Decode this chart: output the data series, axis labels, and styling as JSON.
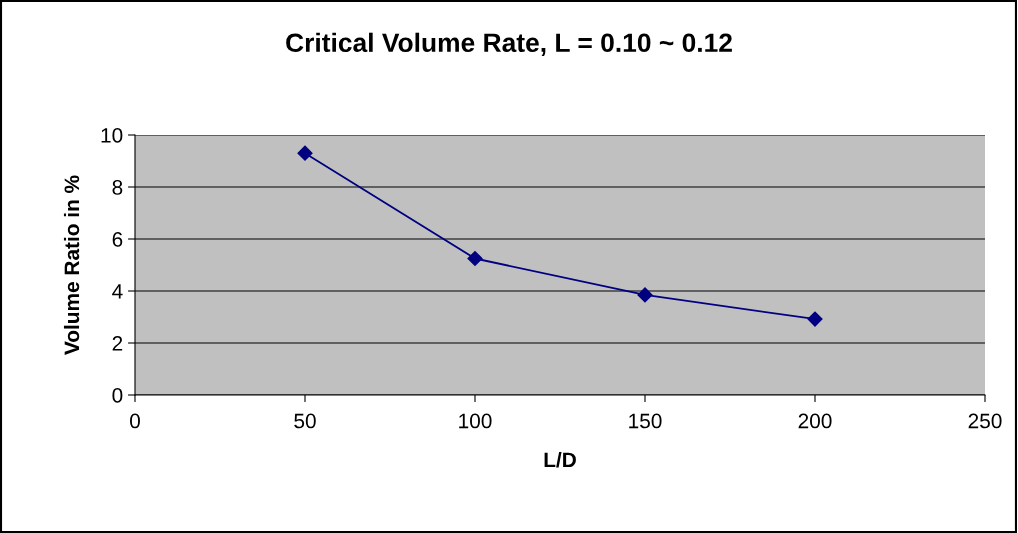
{
  "chart_data": {
    "type": "line",
    "title": "Critical Volume Rate, L = 0.10 ~ 0.12",
    "xlabel": "L/D",
    "ylabel": "Volume Ratio in %",
    "x": [
      50,
      100,
      150,
      200
    ],
    "series": [
      {
        "color": "#000080",
        "values": [
          9.3,
          5.25,
          3.85,
          2.92
        ]
      }
    ],
    "xlim": [
      0,
      250
    ],
    "xticks": [
      0,
      50,
      100,
      150,
      200,
      250
    ],
    "ylim": [
      0,
      10
    ],
    "yticks": [
      0,
      2,
      4,
      6,
      8,
      10
    ],
    "grid": "y",
    "marker": "diamond",
    "line_style": "solid"
  }
}
